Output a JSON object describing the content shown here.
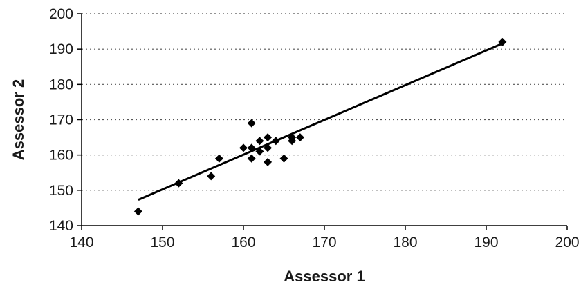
{
  "chart_data": {
    "type": "scatter",
    "xlabel": "Assessor 1",
    "ylabel": "Assessor 2",
    "xlim": [
      140,
      200
    ],
    "ylim": [
      140,
      200
    ],
    "x_ticks": [
      140,
      150,
      160,
      170,
      180,
      190,
      200
    ],
    "y_ticks": [
      140,
      150,
      160,
      170,
      180,
      190,
      200
    ],
    "grid": "horizontal dotted",
    "colors": {
      "points": "#000000",
      "trendline": "#000000"
    },
    "series": [
      {
        "marker": "diamond",
        "points": [
          {
            "x": 147,
            "y": 144
          },
          {
            "x": 152,
            "y": 152
          },
          {
            "x": 156,
            "y": 154
          },
          {
            "x": 157,
            "y": 159
          },
          {
            "x": 160,
            "y": 162
          },
          {
            "x": 161,
            "y": 169
          },
          {
            "x": 161,
            "y": 162
          },
          {
            "x": 161,
            "y": 159
          },
          {
            "x": 162,
            "y": 164
          },
          {
            "x": 162,
            "y": 161
          },
          {
            "x": 163,
            "y": 165
          },
          {
            "x": 163,
            "y": 162
          },
          {
            "x": 163,
            "y": 158
          },
          {
            "x": 164,
            "y": 164
          },
          {
            "x": 165,
            "y": 159
          },
          {
            "x": 166,
            "y": 165
          },
          {
            "x": 166,
            "y": 164
          },
          {
            "x": 167,
            "y": 165
          },
          {
            "x": 192,
            "y": 192
          }
        ]
      }
    ],
    "trendline": {
      "type": "linear",
      "x": [
        147,
        192
      ],
      "y": [
        147.3,
        191.6
      ]
    }
  }
}
